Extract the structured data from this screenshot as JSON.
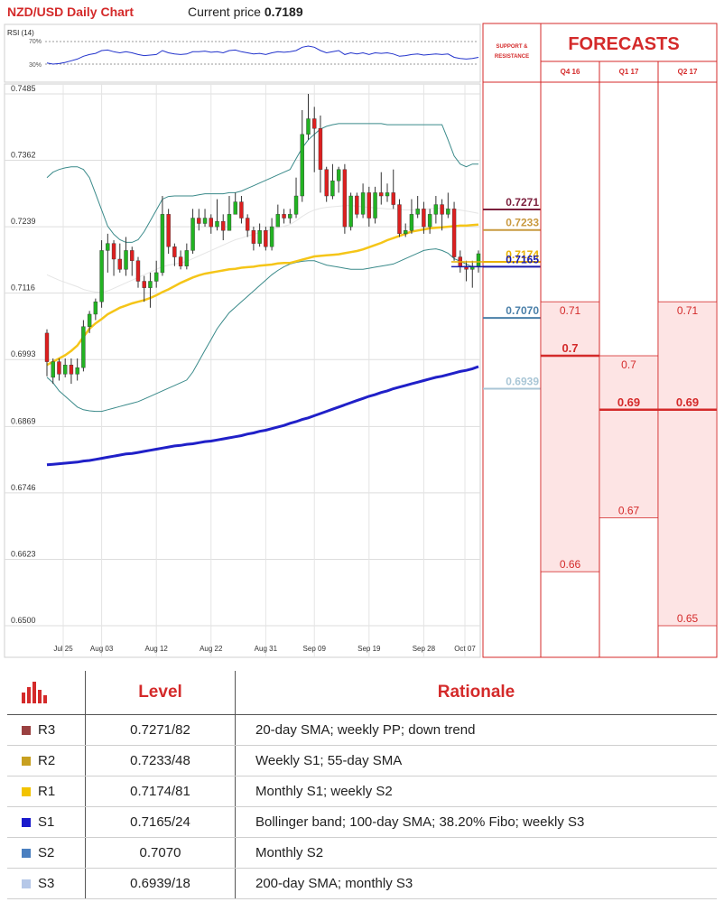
{
  "header": {
    "title": "NZD/USD Daily Chart",
    "price_label": "Current price",
    "price_value": "0.7189"
  },
  "rsi": {
    "label": "RSI (14)",
    "levels": [
      "70%",
      "30%"
    ]
  },
  "chart_data": {
    "type": "candlestick",
    "ylim": [
      0.65,
      0.7485
    ],
    "y_ticks": [
      "0.7485",
      "0.7362",
      "0.7239",
      "0.7116",
      "0.6993",
      "0.6869",
      "0.6746",
      "0.6623",
      "0.6500"
    ],
    "x_ticks": [
      "Jul 25",
      "Aug 03",
      "Aug 12",
      "Aug 22",
      "Aug 31",
      "Sep 09",
      "Sep 19",
      "Sep 28",
      "Oct 07"
    ],
    "candles": [
      [
        0.7042,
        0.6989,
        0.7049,
        0.6962
      ],
      [
        0.696,
        0.6989,
        0.6995,
        0.6948
      ],
      [
        0.6989,
        0.6966,
        0.6995,
        0.6954
      ],
      [
        0.6966,
        0.6983,
        0.6995,
        0.696
      ],
      [
        0.6983,
        0.6966,
        0.6995,
        0.6948
      ],
      [
        0.6966,
        0.6978,
        0.6995,
        0.6954
      ],
      [
        0.6978,
        0.7054,
        0.7066,
        0.6971
      ],
      [
        0.7054,
        0.7077,
        0.7083,
        0.7042
      ],
      [
        0.7077,
        0.71,
        0.7106,
        0.7066
      ],
      [
        0.71,
        0.7195,
        0.7214,
        0.7089
      ],
      [
        0.7195,
        0.7208,
        0.7226,
        0.7154
      ],
      [
        0.7208,
        0.7179,
        0.7214,
        0.7148
      ],
      [
        0.7179,
        0.716,
        0.7208,
        0.7154
      ],
      [
        0.716,
        0.7195,
        0.722,
        0.7148
      ],
      [
        0.7195,
        0.7176,
        0.7202,
        0.7148
      ],
      [
        0.7176,
        0.7138,
        0.7183,
        0.7126
      ],
      [
        0.7138,
        0.7126,
        0.7148,
        0.71
      ],
      [
        0.7126,
        0.7138,
        0.7154,
        0.7089
      ],
      [
        0.7138,
        0.7154,
        0.7176,
        0.7126
      ],
      [
        0.7154,
        0.7262,
        0.7296,
        0.7148
      ],
      [
        0.7262,
        0.7202,
        0.7272,
        0.7189
      ],
      [
        0.7202,
        0.7183,
        0.7208,
        0.7166
      ],
      [
        0.7183,
        0.7166,
        0.7195,
        0.716
      ],
      [
        0.7166,
        0.7195,
        0.7208,
        0.716
      ],
      [
        0.7195,
        0.7255,
        0.7272,
        0.7189
      ],
      [
        0.7255,
        0.7245,
        0.7272,
        0.7232
      ],
      [
        0.7245,
        0.7255,
        0.7272,
        0.7239
      ],
      [
        0.7255,
        0.7239,
        0.7262,
        0.7226
      ],
      [
        0.7239,
        0.7249,
        0.729,
        0.7232
      ],
      [
        0.7249,
        0.7232,
        0.7262,
        0.7214
      ],
      [
        0.7232,
        0.7262,
        0.7296,
        0.7232
      ],
      [
        0.7262,
        0.7285,
        0.7302,
        0.7262
      ],
      [
        0.7285,
        0.7255,
        0.7296,
        0.7245
      ],
      [
        0.7255,
        0.7232,
        0.7262,
        0.722
      ],
      [
        0.7232,
        0.7208,
        0.7239,
        0.7195
      ],
      [
        0.7208,
        0.7232,
        0.7245,
        0.7202
      ],
      [
        0.7232,
        0.7202,
        0.7239,
        0.7195
      ],
      [
        0.7202,
        0.7239,
        0.7255,
        0.7195
      ],
      [
        0.7239,
        0.7262,
        0.728,
        0.7239
      ],
      [
        0.7262,
        0.7255,
        0.7272,
        0.7245
      ],
      [
        0.7255,
        0.7262,
        0.7272,
        0.7245
      ],
      [
        0.7262,
        0.7296,
        0.733,
        0.7255
      ],
      [
        0.7296,
        0.741,
        0.7455,
        0.7285
      ],
      [
        0.741,
        0.7439,
        0.7485,
        0.74
      ],
      [
        0.7439,
        0.7421,
        0.7461,
        0.734
      ],
      [
        0.7421,
        0.7345,
        0.7445,
        0.7302
      ],
      [
        0.7345,
        0.7296,
        0.735,
        0.7285
      ],
      [
        0.7296,
        0.7324,
        0.7355,
        0.729
      ],
      [
        0.7324,
        0.7345,
        0.735,
        0.7302
      ],
      [
        0.7345,
        0.7239,
        0.7355,
        0.7226
      ],
      [
        0.7239,
        0.7296,
        0.7302,
        0.7232
      ],
      [
        0.7296,
        0.7262,
        0.7302,
        0.7255
      ],
      [
        0.7262,
        0.7302,
        0.7319,
        0.7255
      ],
      [
        0.7302,
        0.7255,
        0.7313,
        0.7239
      ],
      [
        0.7255,
        0.7302,
        0.7313,
        0.7245
      ],
      [
        0.7302,
        0.7296,
        0.734,
        0.728
      ],
      [
        0.7296,
        0.7302,
        0.7319,
        0.7285
      ],
      [
        0.7302,
        0.728,
        0.7345,
        0.7272
      ],
      [
        0.728,
        0.7226,
        0.729,
        0.722
      ],
      [
        0.7226,
        0.7232,
        0.7245,
        0.722
      ],
      [
        0.7232,
        0.7262,
        0.729,
        0.7226
      ],
      [
        0.7262,
        0.7272,
        0.7296,
        0.7255
      ],
      [
        0.7272,
        0.7239,
        0.7285,
        0.7226
      ],
      [
        0.7239,
        0.7262,
        0.7272,
        0.7226
      ],
      [
        0.7262,
        0.728,
        0.7296,
        0.7245
      ],
      [
        0.728,
        0.7262,
        0.729,
        0.7232
      ],
      [
        0.7262,
        0.7272,
        0.7302,
        0.7255
      ],
      [
        0.7272,
        0.7183,
        0.7285,
        0.7176
      ],
      [
        0.7183,
        0.7166,
        0.7195,
        0.7154
      ],
      [
        0.7166,
        0.716,
        0.7176,
        0.7138
      ],
      [
        0.716,
        0.7166,
        0.7176,
        0.7126
      ],
      [
        0.7166,
        0.7189,
        0.7195,
        0.7154
      ]
    ],
    "sma_55": [
      0.6983,
      0.6989,
      0.6995,
      0.7001,
      0.7009,
      0.7019,
      0.7035,
      0.705,
      0.706,
      0.7068,
      0.7077,
      0.7083,
      0.7089,
      0.7093,
      0.7097,
      0.71,
      0.7103,
      0.7107,
      0.7112,
      0.7118,
      0.7123,
      0.7129,
      0.7135,
      0.714,
      0.7145,
      0.7149,
      0.7152,
      0.7154,
      0.7156,
      0.7158,
      0.716,
      0.7161,
      0.7163,
      0.7164,
      0.7165,
      0.7167,
      0.7168,
      0.7169,
      0.7171,
      0.7172,
      0.7172,
      0.7175,
      0.7178,
      0.7181,
      0.7184,
      0.7185,
      0.7186,
      0.7187,
      0.7188,
      0.719,
      0.7192,
      0.7194,
      0.7197,
      0.7201,
      0.7205,
      0.7209,
      0.7214,
      0.7218,
      0.7222,
      0.7226,
      0.723,
      0.7232,
      0.7234,
      0.7236,
      0.7237,
      0.7238,
      0.7239,
      0.724,
      0.7241,
      0.7241,
      0.7242,
      0.7243
    ],
    "sma_200": [
      0.6798,
      0.6799,
      0.68,
      0.6801,
      0.6802,
      0.6803,
      0.6805,
      0.6806,
      0.6808,
      0.681,
      0.6812,
      0.6814,
      0.6816,
      0.6818,
      0.6819,
      0.6821,
      0.6823,
      0.6825,
      0.6827,
      0.6829,
      0.6831,
      0.6833,
      0.6834,
      0.6836,
      0.6837,
      0.6839,
      0.6841,
      0.6842,
      0.6844,
      0.6846,
      0.6848,
      0.685,
      0.6852,
      0.6855,
      0.6857,
      0.686,
      0.6862,
      0.6865,
      0.6868,
      0.6871,
      0.6875,
      0.6878,
      0.6882,
      0.6885,
      0.6889,
      0.6893,
      0.6897,
      0.6901,
      0.6905,
      0.6909,
      0.6913,
      0.6917,
      0.6921,
      0.6925,
      0.6928,
      0.6932,
      0.6935,
      0.6939,
      0.6942,
      0.6945,
      0.6948,
      0.6951,
      0.6954,
      0.6957,
      0.696,
      0.6962,
      0.6965,
      0.6968,
      0.6971,
      0.6973,
      0.6976,
      0.698
    ],
    "bb_upper": [
      0.733,
      0.734,
      0.7345,
      0.7348,
      0.735,
      0.735,
      0.7345,
      0.733,
      0.73,
      0.727,
      0.724,
      0.7225,
      0.7215,
      0.721,
      0.721,
      0.7215,
      0.723,
      0.725,
      0.727,
      0.729,
      0.7295,
      0.7296,
      0.7296,
      0.7296,
      0.7296,
      0.7298,
      0.73,
      0.73,
      0.73,
      0.73,
      0.7302,
      0.7302,
      0.7305,
      0.731,
      0.7315,
      0.732,
      0.7325,
      0.733,
      0.7335,
      0.734,
      0.7345,
      0.7365,
      0.7385,
      0.74,
      0.741,
      0.742,
      0.7425,
      0.7428,
      0.743,
      0.743,
      0.743,
      0.743,
      0.743,
      0.743,
      0.743,
      0.743,
      0.7428,
      0.7428,
      0.7428,
      0.7428,
      0.7428,
      0.7428,
      0.7428,
      0.7428,
      0.7428,
      0.7428,
      0.74,
      0.737,
      0.7355,
      0.735,
      0.7355,
      0.7355
    ],
    "bb_lower": [
      0.696,
      0.695,
      0.6935,
      0.6925,
      0.6915,
      0.6905,
      0.69,
      0.6898,
      0.6897,
      0.6897,
      0.69,
      0.6903,
      0.6906,
      0.6909,
      0.6912,
      0.6915,
      0.692,
      0.6925,
      0.693,
      0.6935,
      0.694,
      0.6945,
      0.695,
      0.6955,
      0.697,
      0.699,
      0.701,
      0.703,
      0.705,
      0.7065,
      0.708,
      0.709,
      0.71,
      0.711,
      0.712,
      0.713,
      0.714,
      0.715,
      0.7158,
      0.7165,
      0.717,
      0.7173,
      0.7175,
      0.7176,
      0.7176,
      0.7172,
      0.7168,
      0.7166,
      0.7164,
      0.7162,
      0.716,
      0.716,
      0.716,
      0.7162,
      0.7164,
      0.7166,
      0.7168,
      0.717,
      0.7175,
      0.718,
      0.7185,
      0.719,
      0.7195,
      0.7197,
      0.7198,
      0.7195,
      0.719,
      0.718,
      0.7175,
      0.717,
      0.7165,
      0.7165
    ],
    "bb_mid": [
      0.715,
      0.7145,
      0.714,
      0.7136,
      0.7132,
      0.7128,
      0.7123,
      0.712,
      0.7118,
      0.7118,
      0.712,
      0.7125,
      0.713,
      0.7135,
      0.714,
      0.7145,
      0.715,
      0.7155,
      0.716,
      0.7165,
      0.7168,
      0.717,
      0.7172,
      0.7175,
      0.718,
      0.7185,
      0.719,
      0.7195,
      0.72,
      0.7205,
      0.721,
      0.7215,
      0.7218,
      0.7222,
      0.7225,
      0.7228,
      0.7231,
      0.7234,
      0.7237,
      0.724,
      0.7243,
      0.725,
      0.7258,
      0.7265,
      0.727,
      0.7273,
      0.7275,
      0.7276,
      0.7277,
      0.7278,
      0.7278,
      0.7277,
      0.7276,
      0.7275,
      0.7274,
      0.7273,
      0.7272,
      0.7272,
      0.7271,
      0.727,
      0.727,
      0.727,
      0.7271,
      0.7272,
      0.7273,
      0.7273,
      0.7272,
      0.7271,
      0.727,
      0.7268,
      0.7266,
      0.7264
    ],
    "rsi": [
      40,
      38,
      39,
      41,
      44,
      47,
      52,
      55,
      57,
      62,
      63,
      60,
      58,
      60,
      58,
      55,
      53,
      54,
      55,
      62,
      58,
      56,
      55,
      56,
      60,
      60,
      61,
      59,
      60,
      58,
      62,
      63,
      60,
      58,
      56,
      57,
      55,
      58,
      60,
      59,
      60,
      62,
      68,
      70,
      68,
      62,
      58,
      60,
      62,
      55,
      58,
      56,
      58,
      55,
      58,
      57,
      58,
      56,
      52,
      53,
      55,
      56,
      54,
      55,
      56,
      55,
      56,
      50,
      48,
      47,
      48,
      50
    ]
  },
  "sr": {
    "title": "SUPPORT & RESISTANCE",
    "levels": [
      {
        "value": 0.7271,
        "label": "0.7271",
        "color": "#7b1f3c"
      },
      {
        "value": 0.7233,
        "label": "0.7233",
        "color": "#c99a40"
      },
      {
        "value": 0.7174,
        "label": "0.7174",
        "color": "#e8b100"
      },
      {
        "value": 0.7165,
        "label": "0.7165",
        "color": "#1a1aaa"
      },
      {
        "value": 0.707,
        "label": "0.7070",
        "color": "#4a7fa8"
      },
      {
        "value": 0.6939,
        "label": "0.6939",
        "color": "#a9c6d6"
      }
    ]
  },
  "forecasts": {
    "title": "FORECASTS",
    "columns": [
      {
        "label": "Q4 16",
        "high": 0.71,
        "high_label": "0.71",
        "mid": 0.7,
        "mid_label": "0.7",
        "low": 0.66,
        "low_label": "0.66"
      },
      {
        "label": "Q1 17",
        "high": 0.7,
        "high_label": "0.7",
        "mid": 0.69,
        "mid_label": "0.69",
        "low": 0.67,
        "low_label": "0.67"
      },
      {
        "label": "Q2 17",
        "high": 0.71,
        "high_label": "0.71",
        "mid": 0.69,
        "mid_label": "0.69",
        "low": 0.65,
        "low_label": "0.65"
      }
    ]
  },
  "table": {
    "head": {
      "level": "Level",
      "rationale": "Rationale"
    },
    "rows": [
      {
        "name": "R3",
        "level": "0.7271/82",
        "rationale": "20-day SMA; weekly PP; down trend",
        "color": "#9a4040"
      },
      {
        "name": "R2",
        "level": "0.7233/48",
        "rationale": "Weekly S1; 55-day SMA",
        "color": "#c8a020"
      },
      {
        "name": "R1",
        "level": "0.7174/81",
        "rationale": "Monthly S1; weekly S2",
        "color": "#f2c300"
      },
      {
        "name": "S1",
        "level": "0.7165/24",
        "rationale": "Bollinger band; 100-day SMA; 38.20% Fibo; weekly S3",
        "color": "#1a1acc"
      },
      {
        "name": "S2",
        "level": "0.7070",
        "rationale": "Monthly S2",
        "color": "#4a7fc0"
      },
      {
        "name": "S3",
        "level": "0.6939/18",
        "rationale": "200-day SMA; monthly S3",
        "color": "#b6c8e8"
      }
    ]
  }
}
